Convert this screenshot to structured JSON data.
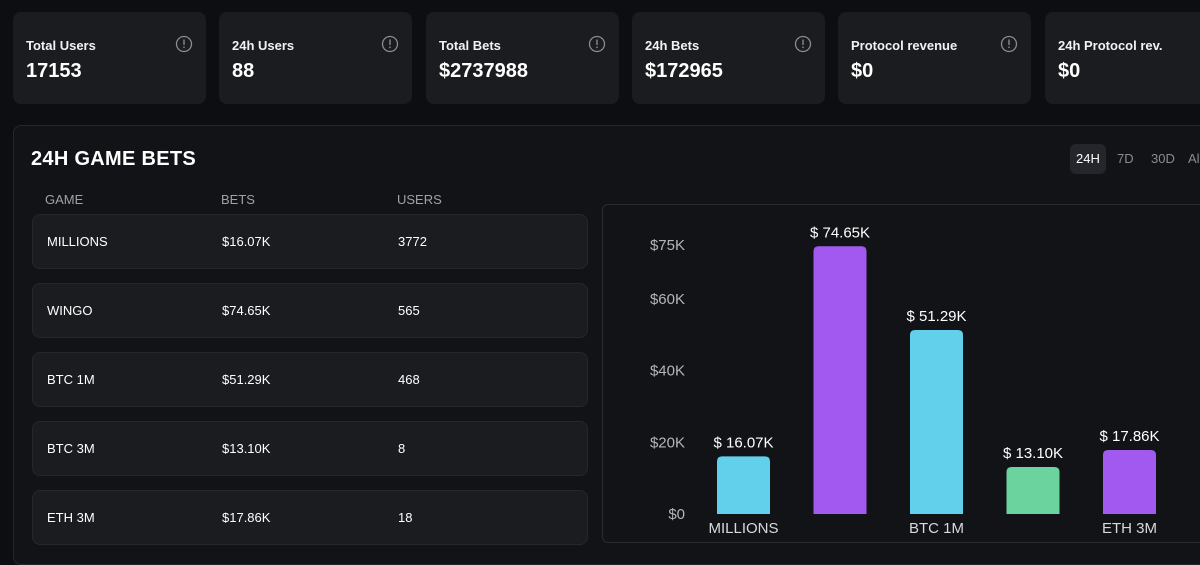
{
  "stats": [
    {
      "label": "Total Users",
      "value": "17153"
    },
    {
      "label": "24h Users",
      "value": "88"
    },
    {
      "label": "Total Bets",
      "value": "$2737988"
    },
    {
      "label": "24h Bets",
      "value": "$172965"
    },
    {
      "label": "Protocol revenue",
      "value": "$0"
    },
    {
      "label": "24h Protocol rev.",
      "value": "$0"
    }
  ],
  "panel": {
    "title": "24H GAME BETS",
    "ranges": [
      "24H",
      "7D",
      "30D",
      "All"
    ],
    "active_range": "24H",
    "columns": [
      "GAME",
      "BETS",
      "USERS"
    ],
    "rows": [
      {
        "game": "MILLIONS",
        "bets": "$16.07K",
        "users": "3772"
      },
      {
        "game": "WINGO",
        "bets": "$74.65K",
        "users": "565"
      },
      {
        "game": "BTC 1M",
        "bets": "$51.29K",
        "users": "468"
      },
      {
        "game": "BTC 3M",
        "bets": "$13.10K",
        "users": "8"
      },
      {
        "game": "ETH 3M",
        "bets": "$17.86K",
        "users": "18"
      }
    ]
  },
  "chart_data": {
    "type": "bar",
    "title": "",
    "xlabel": "",
    "ylabel": "",
    "categories": [
      "MILLIONS",
      "WINGO",
      "BTC 1M",
      "BTC 3M",
      "ETH 3M"
    ],
    "visible_category_labels": [
      "MILLIONS",
      "",
      "BTC 1M",
      "",
      "ETH 3M"
    ],
    "values": [
      16070,
      74650,
      51290,
      13100,
      17860
    ],
    "data_labels": [
      "$ 16.07K",
      "$ 74.65K",
      "$ 51.29K",
      "$ 13.10K",
      "$ 17.86K"
    ],
    "bar_colors": [
      "#62d0ea",
      "#a259f0",
      "#62d0ea",
      "#6bd39e",
      "#a259f0"
    ],
    "yticks": [
      0,
      20000,
      40000,
      60000,
      75000
    ],
    "ytick_labels": [
      "$0",
      "$20K",
      "$40K",
      "$60K",
      "$75K"
    ],
    "ylim": [
      0,
      75000
    ],
    "grid": false,
    "legend": "none"
  }
}
